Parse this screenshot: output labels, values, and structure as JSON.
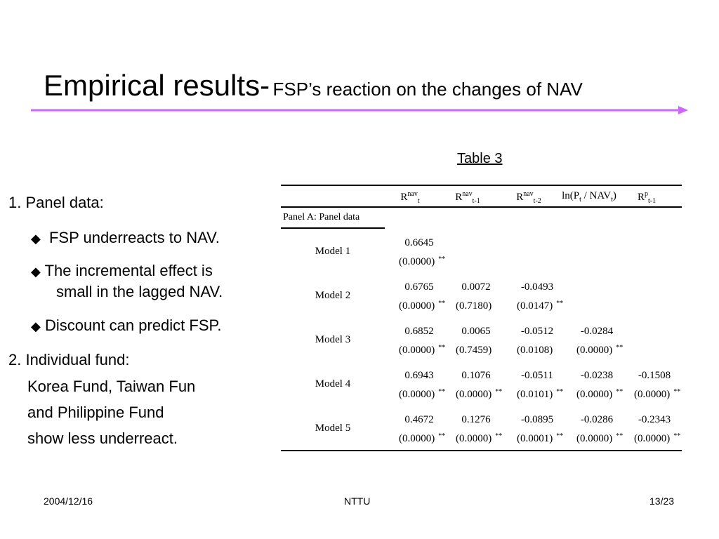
{
  "title": {
    "main": "Empirical results-",
    "sub": "FSP’s reaction on the changes of NAV"
  },
  "caption": "Table 3",
  "bullets": {
    "panel_heading": "1. Panel data:",
    "items": [
      "FSP underreacts to NAV.",
      "The incremental effect is",
      "small in the lagged NAV.",
      "Discount can predict FSP."
    ],
    "individual_heading": "2. Individual fund:",
    "individual_lines": [
      "Korea Fund, Taiwan Fun",
      "and Philippine Fund",
      "show less underreact."
    ]
  },
  "table": {
    "headers": [
      {
        "base": "R",
        "sup": "nav",
        "sub": "t"
      },
      {
        "base": "R",
        "sup": "nav",
        "sub": "t-1"
      },
      {
        "base": "R",
        "sup": "nav",
        "sub": "t-2"
      },
      {
        "pre": "ln(P",
        "sub1": "t",
        "mid": " / NAV",
        "sub2": "t",
        "post": ")"
      },
      {
        "base": "R",
        "sup": "p",
        "sub": "t-1"
      }
    ],
    "panel_label": "Panel A: Panel data",
    "rows": [
      {
        "label": "Model 1",
        "cells": [
          {
            "coef": "0.6645",
            "p": "(0.0000)",
            "sig": "**"
          }
        ]
      },
      {
        "label": "Model 2",
        "cells": [
          {
            "coef": "0.6765",
            "p": "(0.0000)",
            "sig": "**"
          },
          {
            "coef": "0.0072",
            "p": "(0.7180)",
            "sig": ""
          },
          {
            "coef": "-0.0493",
            "p": "(0.0147)",
            "sig": "**"
          }
        ]
      },
      {
        "label": "Model 3",
        "cells": [
          {
            "coef": "0.6852",
            "p": "(0.0000)",
            "sig": "**"
          },
          {
            "coef": "0.0065",
            "p": "(0.7459)",
            "sig": ""
          },
          {
            "coef": "-0.0512",
            "p": "(0.0108)",
            "sig": ""
          },
          {
            "coef": "-0.0284",
            "p": "(0.0000)",
            "sig": "**"
          }
        ]
      },
      {
        "label": "Model 4",
        "cells": [
          {
            "coef": "0.6943",
            "p": "(0.0000)",
            "sig": "**"
          },
          {
            "coef": "0.1076",
            "p": "(0.0000)",
            "sig": "**"
          },
          {
            "coef": "-0.0511",
            "p": "(0.0101)",
            "sig": "**"
          },
          {
            "coef": "-0.0238",
            "p": "(0.0000)",
            "sig": "**"
          },
          {
            "coef": "-0.1508",
            "p": "(0.0000)",
            "sig": "**"
          }
        ]
      },
      {
        "label": "Model 5",
        "cells": [
          {
            "coef": "0.4672",
            "p": "(0.0000)",
            "sig": "**"
          },
          {
            "coef": "0.1276",
            "p": "(0.0000)",
            "sig": "**"
          },
          {
            "coef": "-0.0895",
            "p": "(0.0001)",
            "sig": "**"
          },
          {
            "coef": "-0.0286",
            "p": "(0.0000)",
            "sig": "**"
          },
          {
            "coef": "-0.2343",
            "p": "(0.0000)",
            "sig": "**"
          }
        ]
      }
    ]
  },
  "footer": {
    "date": "2004/12/16",
    "org": "NTTU",
    "page": "13/23"
  },
  "colors": {
    "accent_line": "#cc66ff",
    "arrow": "#cc66ff"
  }
}
